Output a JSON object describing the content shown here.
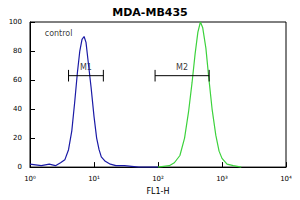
{
  "chart_data": {
    "type": "line",
    "title": "MDA-MB435",
    "xlabel": "FL1-H",
    "log": "x",
    "xlim": [
      1,
      10000
    ],
    "xticks": [
      {
        "value": 1,
        "label": "10⁰"
      },
      {
        "value": 10,
        "label": "10¹"
      },
      {
        "value": 100,
        "label": "10²"
      },
      {
        "value": 1000,
        "label": "10³"
      },
      {
        "value": 10000,
        "label": "10⁴"
      }
    ],
    "ylim": [
      0,
      100
    ],
    "yticks": [
      0,
      20,
      40,
      60,
      80,
      100
    ],
    "grid": false,
    "series": [
      {
        "color": "#1a1aa6",
        "x": [
          1,
          1.5,
          2,
          2.5,
          3,
          3.5,
          4,
          4.5,
          5,
          5.5,
          6,
          6.5,
          7,
          7.5,
          8,
          9,
          10,
          11,
          12,
          13,
          15,
          18,
          22,
          30,
          50,
          100
        ],
        "values": [
          2,
          1,
          2,
          1,
          3,
          5,
          12,
          25,
          45,
          65,
          80,
          88,
          90,
          86,
          75,
          55,
          35,
          20,
          12,
          7,
          4,
          2,
          1,
          1,
          0,
          0
        ]
      },
      {
        "color": "#3cd23c",
        "x": [
          100,
          150,
          180,
          220,
          260,
          300,
          340,
          380,
          420,
          460,
          500,
          560,
          620,
          700,
          800,
          900,
          1000,
          1200,
          1500,
          2000
        ],
        "values": [
          0,
          1,
          3,
          8,
          20,
          38,
          58,
          78,
          93,
          100,
          96,
          82,
          62,
          40,
          22,
          11,
          6,
          2,
          1,
          0
        ]
      }
    ],
    "markers": [
      {
        "label": "M1",
        "x": [
          4,
          14
        ],
        "y": 63
      },
      {
        "label": "M2",
        "x": [
          90,
          630
        ],
        "y": 63
      }
    ],
    "annotations": [
      {
        "text": "control",
        "x": 1.7,
        "y": 92
      }
    ]
  }
}
